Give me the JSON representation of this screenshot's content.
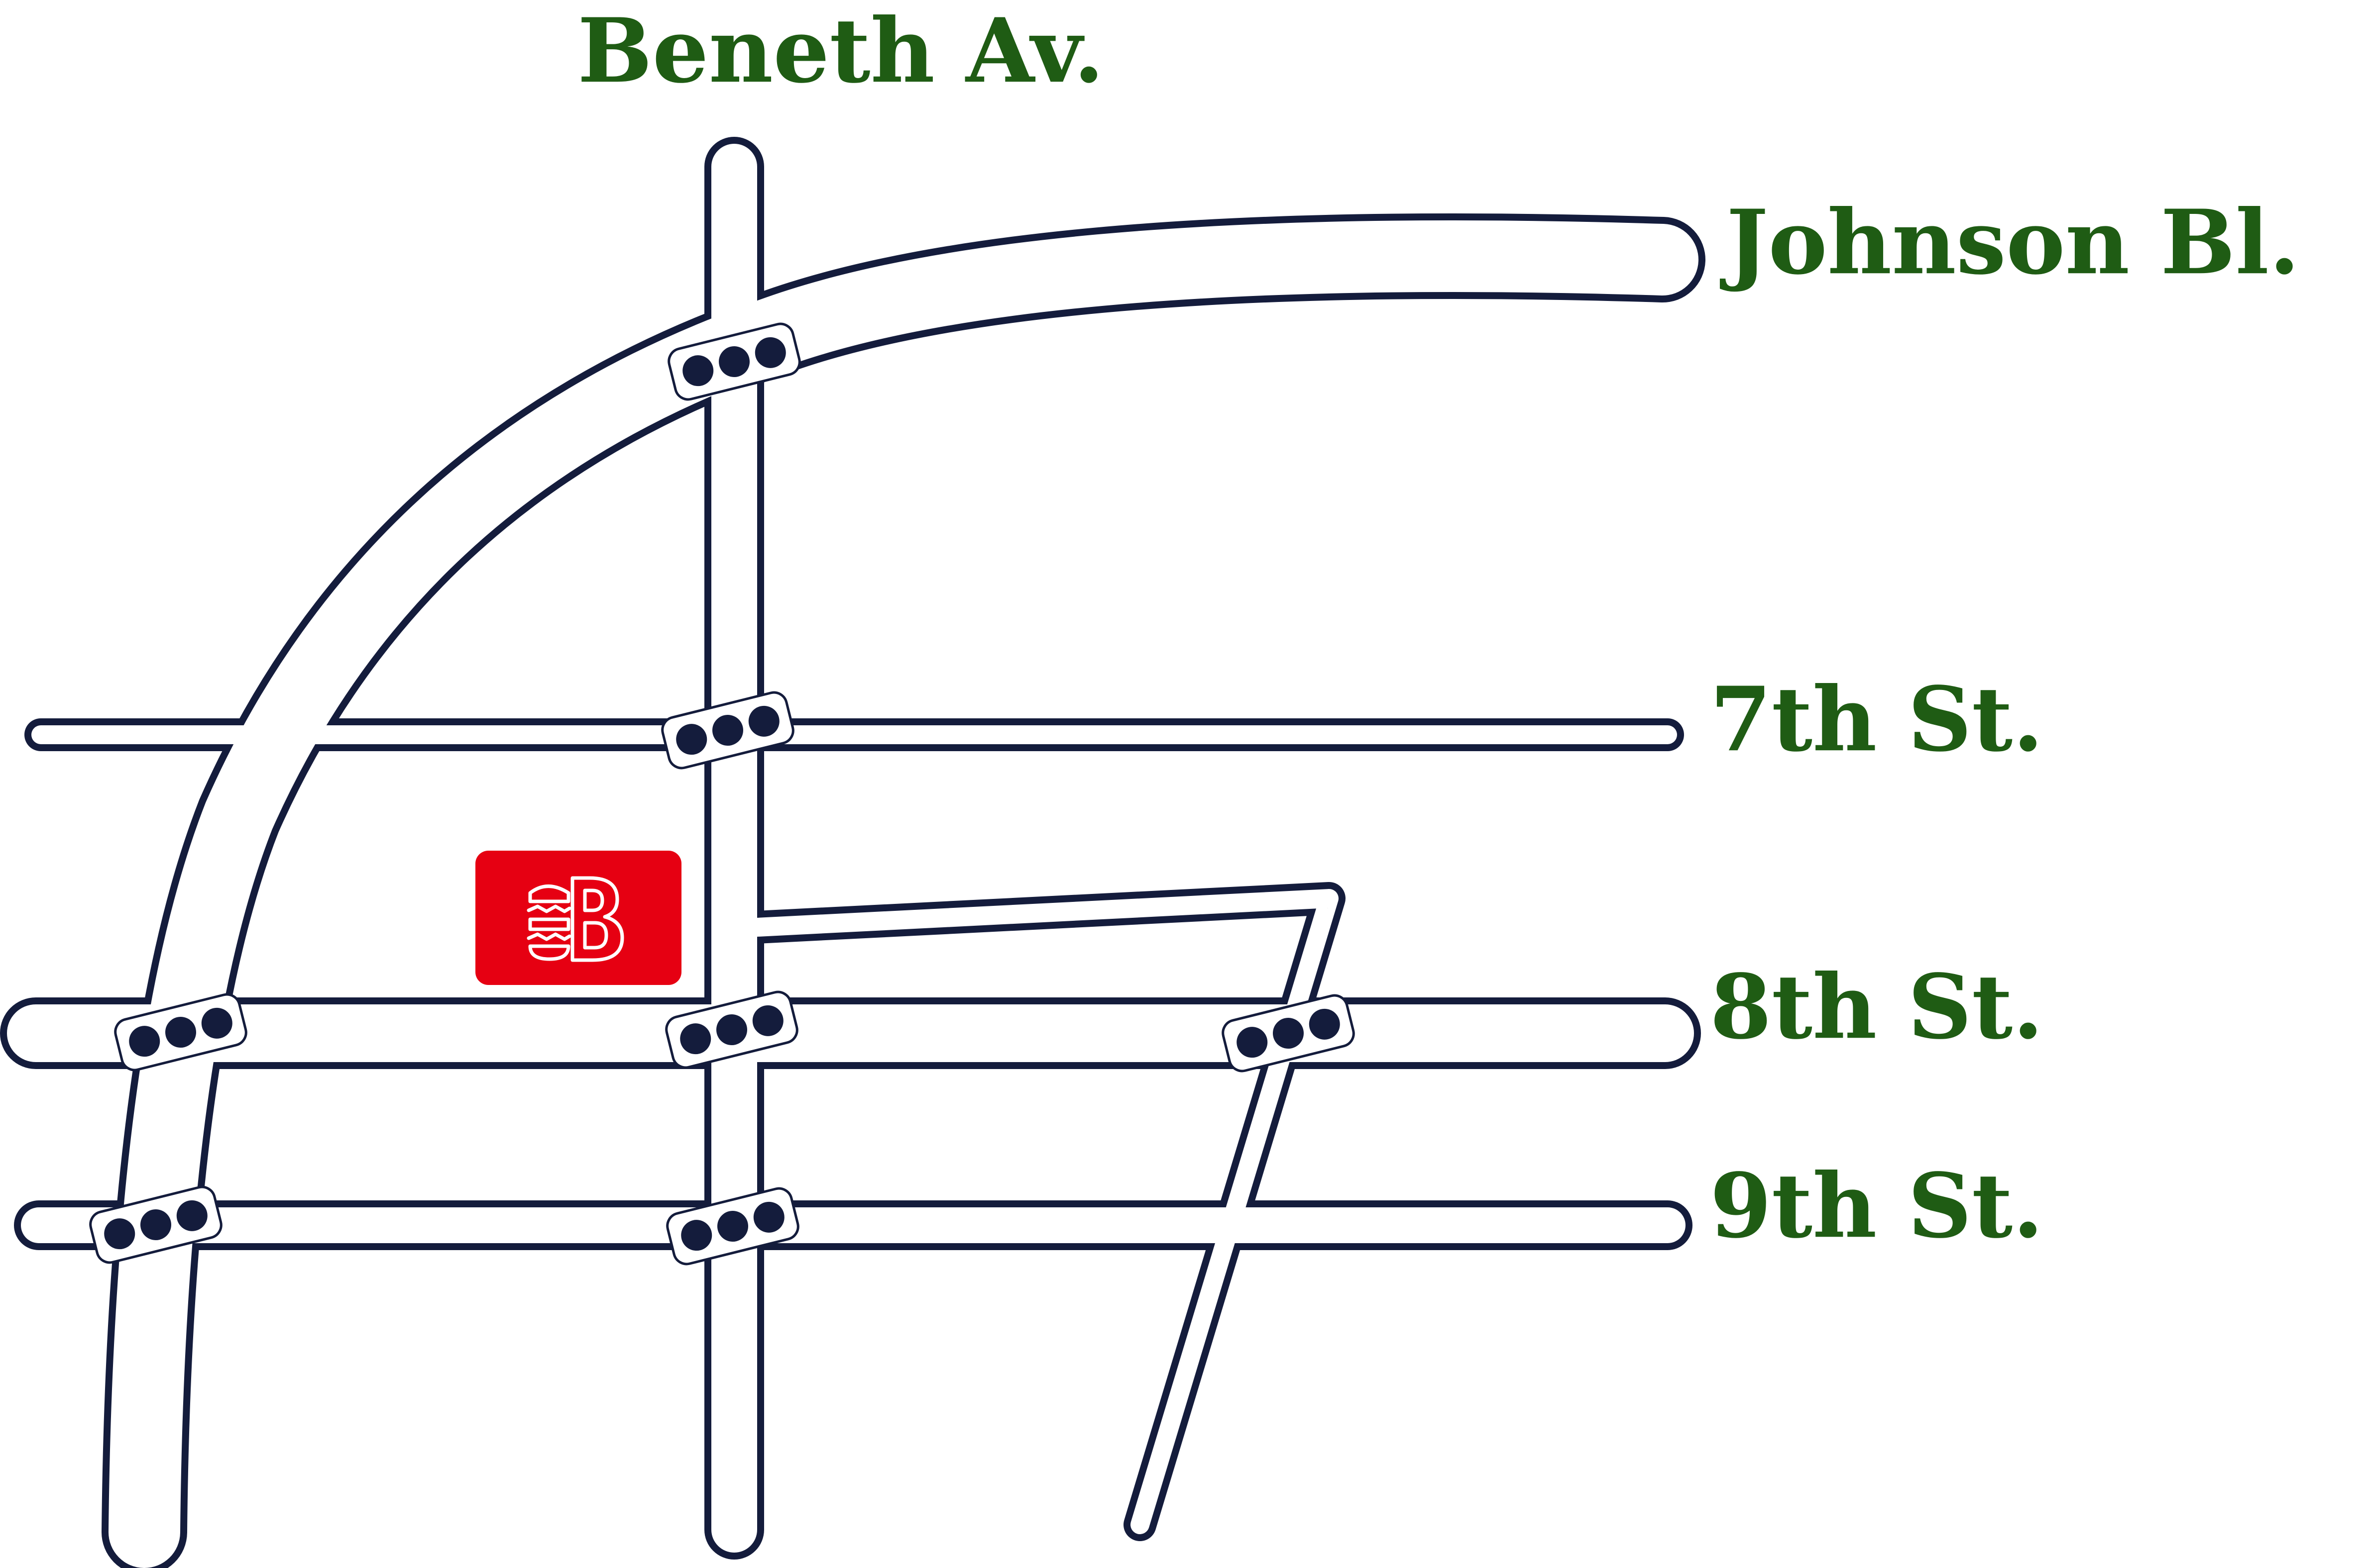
{
  "colors": {
    "road_outline": "#141c3c",
    "road_fill": "#ffffff",
    "label": "#1f5c14",
    "marker": "#e60012"
  },
  "streets": {
    "beneth": "Beneth Av.",
    "johnson": "Johnson Bl.",
    "seventh": "7th St.",
    "eighth": "8th St.",
    "ninth": "9th St."
  },
  "markers": {
    "store": {
      "icon": "burger-shop-logo-icon"
    }
  },
  "traffic_lights": [
    {
      "name": "traffic-light-beneth-johnson"
    },
    {
      "name": "traffic-light-beneth-7th"
    },
    {
      "name": "traffic-light-curve-8th"
    },
    {
      "name": "traffic-light-beneth-8th"
    },
    {
      "name": "traffic-light-diagonal-8th"
    },
    {
      "name": "traffic-light-curve-9th"
    },
    {
      "name": "traffic-light-beneth-9th"
    }
  ]
}
